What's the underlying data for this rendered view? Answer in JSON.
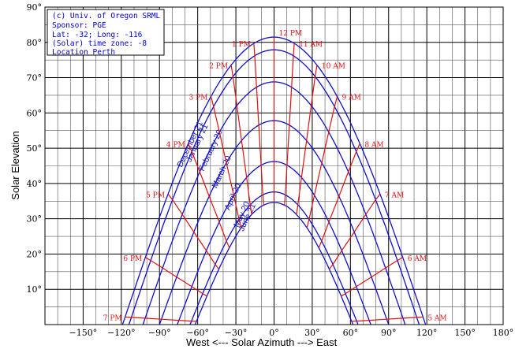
{
  "colors": {
    "date_curves": "#1010cc",
    "hour_curves": "#e01010",
    "info_text": "#0000cc",
    "grid_major": "#000000",
    "grid_minor": "#555555"
  },
  "info_box": {
    "lines": [
      "(c) Univ. of Oregon SRML",
      "Sponsor: PGE",
      "Lat: -32; Long: -116",
      "(Solar) time zone: -8",
      "Location Perth"
    ]
  },
  "chart_data": {
    "type": "line",
    "title": "",
    "xlabel": "West <--- Solar Azimuth ---> East",
    "ylabel": "Solar Elevation",
    "xlim": [
      -180,
      180
    ],
    "ylim": [
      0,
      90
    ],
    "grid": true,
    "x_ticks": [
      {
        "value": -150,
        "label": "−150°"
      },
      {
        "value": -120,
        "label": "−120°"
      },
      {
        "value": -90,
        "label": "−90°"
      },
      {
        "value": -60,
        "label": "−60°"
      },
      {
        "value": -30,
        "label": "−30°"
      },
      {
        "value": 0,
        "label": "0°"
      },
      {
        "value": 30,
        "label": "30°"
      },
      {
        "value": 60,
        "label": "60°"
      },
      {
        "value": 90,
        "label": "90°"
      },
      {
        "value": 120,
        "label": "120°"
      },
      {
        "value": 150,
        "label": "150°"
      },
      {
        "value": 180,
        "label": "180°"
      }
    ],
    "y_ticks": [
      {
        "value": 10,
        "label": "10°"
      },
      {
        "value": 20,
        "label": "20°"
      },
      {
        "value": 30,
        "label": "30°"
      },
      {
        "value": 40,
        "label": "40°"
      },
      {
        "value": 50,
        "label": "50°"
      },
      {
        "value": 60,
        "label": "60°"
      },
      {
        "value": 70,
        "label": "70°"
      },
      {
        "value": 80,
        "label": "80°"
      },
      {
        "value": 90,
        "label": "90°"
      }
    ],
    "date_series": [
      {
        "name": "December 21",
        "noon_elevation": 81.5,
        "azimuth_span": 119
      },
      {
        "name": "January 21",
        "noon_elevation": 77.9,
        "azimuth_span": 114
      },
      {
        "name": "February 20",
        "noon_elevation": 68.8,
        "azimuth_span": 103
      },
      {
        "name": "March 20",
        "noon_elevation": 57.8,
        "azimuth_span": 90
      },
      {
        "name": "April 20",
        "noon_elevation": 46.2,
        "azimuth_span": 76
      },
      {
        "name": "May 20",
        "noon_elevation": 37.6,
        "azimuth_span": 66
      },
      {
        "name": "June 21",
        "noon_elevation": 34.6,
        "azimuth_span": 62
      }
    ],
    "hour_series": [
      {
        "label": "12 PM",
        "hour": 12
      },
      {
        "label": "11 AM",
        "hour": 11
      },
      {
        "label": "10 AM",
        "hour": 10
      },
      {
        "label": "9 AM",
        "hour": 9
      },
      {
        "label": "8 AM",
        "hour": 8
      },
      {
        "label": "7 AM",
        "hour": 7
      },
      {
        "label": "6 AM",
        "hour": 6
      },
      {
        "label": "5 AM",
        "hour": 5
      },
      {
        "label": "1 PM",
        "hour": 13
      },
      {
        "label": "2 PM",
        "hour": 14
      },
      {
        "label": "3 PM",
        "hour": 15
      },
      {
        "label": "4 PM",
        "hour": 16
      },
      {
        "label": "5 PM",
        "hour": 17
      },
      {
        "label": "6 PM",
        "hour": 18
      },
      {
        "label": "7 PM",
        "hour": 19
      }
    ]
  }
}
